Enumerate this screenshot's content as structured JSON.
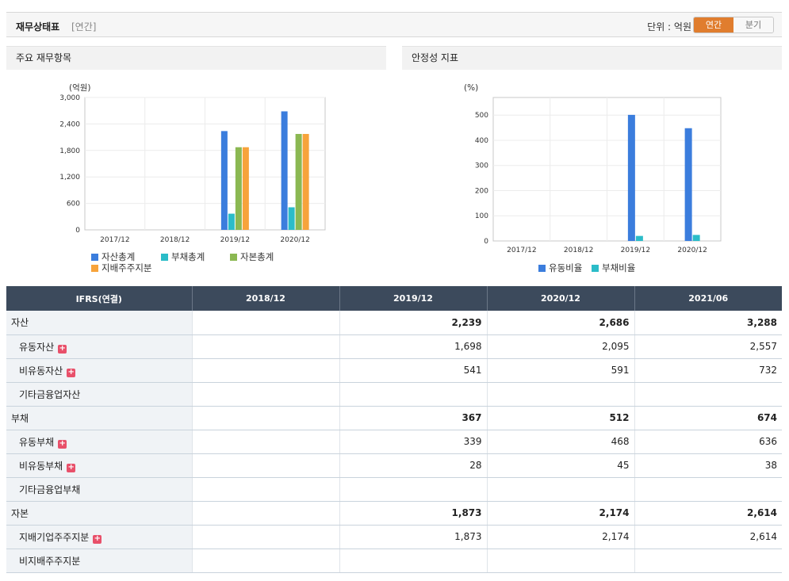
{
  "header": {
    "title": "재무상태표",
    "sub": "[연간]",
    "unit": "단위 : 억원",
    "toggle_annual": "연간",
    "toggle_quarter": "분기"
  },
  "panels": {
    "left_title": "주요 재무항목",
    "right_title": "안정성 지표"
  },
  "colors": {
    "blue": "#3b7ddd",
    "teal": "#2bbcc8",
    "green": "#8bb852",
    "orange": "#f7a33b"
  },
  "chart_data": [
    {
      "type": "bar",
      "ylabel": "(억원)",
      "categories": [
        "2017/12",
        "2018/12",
        "2019/12",
        "2020/12"
      ],
      "ylim": [
        0,
        3000
      ],
      "yticks": [
        0,
        600,
        1200,
        1800,
        2400,
        3000
      ],
      "ytick_labels": [
        "0",
        "600",
        "1,200",
        "1,800",
        "2,400",
        "3,000"
      ],
      "series": [
        {
          "name": "자산총계",
          "color": "#3b7ddd",
          "values": [
            null,
            null,
            2239,
            2686
          ]
        },
        {
          "name": "부채총계",
          "color": "#2bbcc8",
          "values": [
            null,
            null,
            367,
            512
          ]
        },
        {
          "name": "자본총계",
          "color": "#8bb852",
          "values": [
            null,
            null,
            1873,
            2174
          ]
        },
        {
          "name": "지배주주지분",
          "color": "#f7a33b",
          "values": [
            null,
            null,
            1873,
            2174
          ]
        }
      ]
    },
    {
      "type": "bar",
      "ylabel": "(%)",
      "categories": [
        "2017/12",
        "2018/12",
        "2019/12",
        "2020/12"
      ],
      "ylim": [
        0,
        570
      ],
      "yticks": [
        0,
        100,
        200,
        300,
        400,
        500
      ],
      "ytick_labels": [
        "0",
        "100",
        "200",
        "300",
        "400",
        "500"
      ],
      "series": [
        {
          "name": "유동비율",
          "color": "#3b7ddd",
          "values": [
            null,
            null,
            501,
            448
          ]
        },
        {
          "name": "부채비율",
          "color": "#2bbcc8",
          "values": [
            null,
            null,
            20,
            24
          ]
        }
      ]
    }
  ],
  "table": {
    "headers": [
      "IFRS(연결)",
      "2018/12",
      "2019/12",
      "2020/12",
      "2021/06"
    ],
    "rows": [
      {
        "label": "자산",
        "top": true,
        "plus": false,
        "values": [
          "",
          "2,239",
          "2,686",
          "3,288"
        ]
      },
      {
        "label": "유동자산",
        "top": false,
        "plus": true,
        "values": [
          "",
          "1,698",
          "2,095",
          "2,557"
        ]
      },
      {
        "label": "비유동자산",
        "top": false,
        "plus": true,
        "values": [
          "",
          "541",
          "591",
          "732"
        ]
      },
      {
        "label": "기타금융업자산",
        "top": false,
        "plus": false,
        "values": [
          "",
          "",
          "",
          ""
        ]
      },
      {
        "label": "부채",
        "top": true,
        "plus": false,
        "values": [
          "",
          "367",
          "512",
          "674"
        ]
      },
      {
        "label": "유동부채",
        "top": false,
        "plus": true,
        "values": [
          "",
          "339",
          "468",
          "636"
        ]
      },
      {
        "label": "비유동부채",
        "top": false,
        "plus": true,
        "values": [
          "",
          "28",
          "45",
          "38"
        ]
      },
      {
        "label": "기타금융업부채",
        "top": false,
        "plus": false,
        "values": [
          "",
          "",
          "",
          ""
        ]
      },
      {
        "label": "자본",
        "top": true,
        "plus": false,
        "values": [
          "",
          "1,873",
          "2,174",
          "2,614"
        ]
      },
      {
        "label": "지배기업주주지분",
        "top": false,
        "plus": true,
        "values": [
          "",
          "1,873",
          "2,174",
          "2,614"
        ]
      },
      {
        "label": "비지배주주지분",
        "top": false,
        "plus": false,
        "values": [
          "",
          "",
          "",
          ""
        ]
      }
    ]
  }
}
